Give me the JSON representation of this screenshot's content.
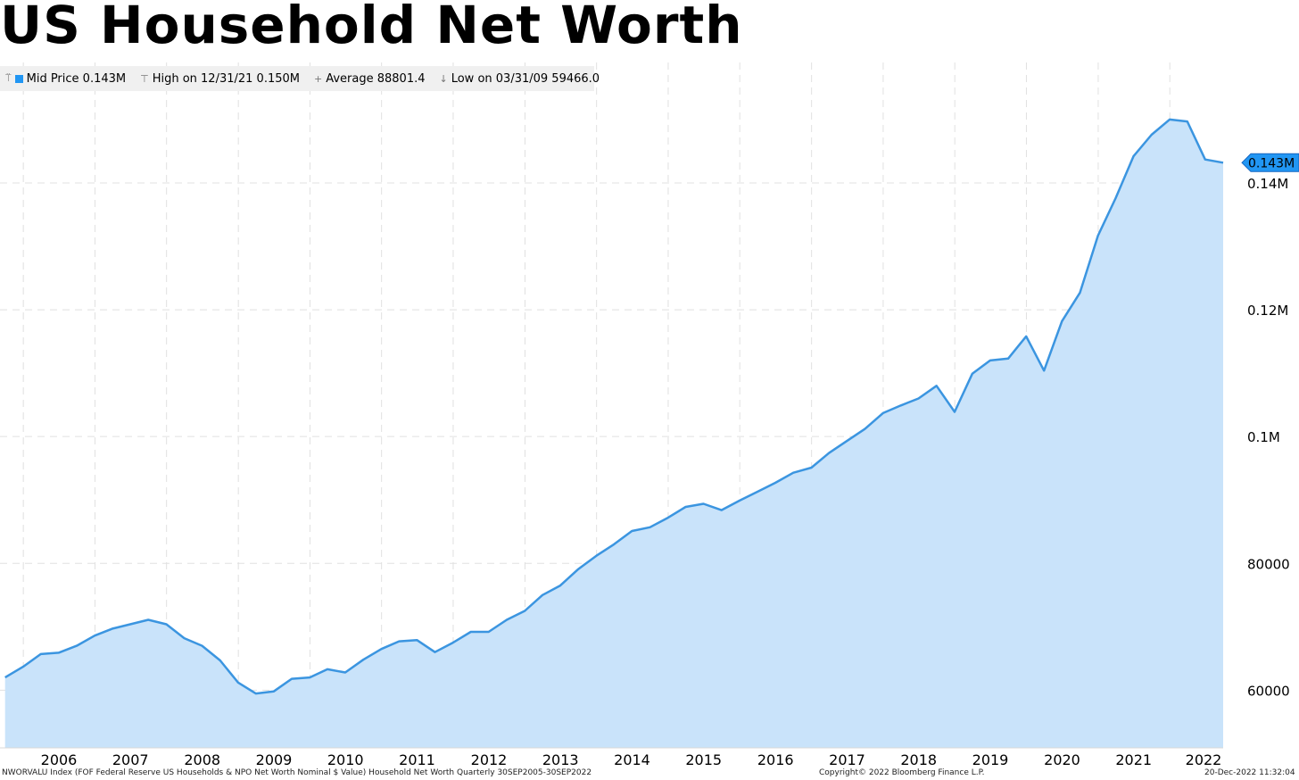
{
  "title": "US Household Net Worth",
  "legend": {
    "mid_price": "Mid Price 0.143M",
    "high": "High on 12/31/21 0.150M",
    "average": "Average 88801.4",
    "low": "Low on 03/31/09 59466.0"
  },
  "colors": {
    "line": "#3b95e0",
    "fill": "#c9e3fa",
    "marker": "#2196f3",
    "grid": "#e0e0e0"
  },
  "footer": {
    "source": "NWORVALU Index (FOF Federal Reserve US Households & NPO Net Worth Nominal $ Value) Household Net Worth  Quarterly 30SEP2005-30SEP2022",
    "copyright": "Copyright© 2022 Bloomberg Finance L.P.",
    "timestamp": "20-Dec-2022 11:32:04"
  },
  "chart_data": {
    "type": "area",
    "title": "US Household Net Worth",
    "series": [
      {
        "name": "Mid Price",
        "x": [
          "09/30/05",
          "12/31/05",
          "03/31/06",
          "06/30/06",
          "09/30/06",
          "12/31/06",
          "03/31/07",
          "06/30/07",
          "09/30/07",
          "12/31/07",
          "03/31/08",
          "06/30/08",
          "09/30/08",
          "12/31/08",
          "03/31/09",
          "06/30/09",
          "09/30/09",
          "12/31/09",
          "03/31/10",
          "06/30/10",
          "09/30/10",
          "12/31/10",
          "03/31/11",
          "06/30/11",
          "09/30/11",
          "12/31/11",
          "03/31/12",
          "06/30/12",
          "09/30/12",
          "12/31/12",
          "03/31/13",
          "06/30/13",
          "09/30/13",
          "12/31/13",
          "03/31/14",
          "06/30/14",
          "09/30/14",
          "12/31/14",
          "03/31/15",
          "06/30/15",
          "09/30/15",
          "12/31/15",
          "03/31/16",
          "06/30/16",
          "09/30/16",
          "12/31/16",
          "03/31/17",
          "06/30/17",
          "09/30/17",
          "12/31/17",
          "03/31/18",
          "06/30/18",
          "09/30/18",
          "12/31/18",
          "03/31/19",
          "06/30/19",
          "09/30/19",
          "12/31/19",
          "03/31/20",
          "06/30/20",
          "09/30/20",
          "12/31/20",
          "03/31/21",
          "06/30/21",
          "09/30/21",
          "12/31/21",
          "03/31/22",
          "06/30/22",
          "09/30/22"
        ],
        "values": [
          62000,
          63700,
          65700,
          65900,
          67000,
          68600,
          69700,
          70400,
          71100,
          70400,
          68200,
          67000,
          64700,
          61200,
          59466,
          59800,
          61800,
          62000,
          63300,
          62800,
          64800,
          66500,
          67700,
          67900,
          66000,
          67500,
          69200,
          69200,
          71100,
          72500,
          75000,
          76500,
          79100,
          81200,
          83000,
          85100,
          85700,
          87200,
          88900,
          89400,
          88400,
          89900,
          91300,
          92700,
          94300,
          95100,
          97400,
          99300,
          101200,
          103700,
          104900,
          106000,
          108000,
          103900,
          109900,
          112000,
          112300,
          115800,
          110400,
          118200,
          122700,
          131700,
          137600,
          144200,
          147600,
          150000,
          149700,
          143700,
          143200
        ]
      }
    ],
    "xlabel": "",
    "ylabel": "",
    "xtick_labels": [
      "2006",
      "2007",
      "2008",
      "2009",
      "2010",
      "2011",
      "2012",
      "2013",
      "2014",
      "2015",
      "2016",
      "2017",
      "2018",
      "2019",
      "2020",
      "2021",
      "2022"
    ],
    "ytick_labels": [
      "60000",
      "80000",
      "0.1M",
      "0.12M",
      "0.14M"
    ],
    "ytick_values": [
      60000,
      80000,
      100000,
      120000,
      140000
    ],
    "last_value_label": "0.143M",
    "ylim": [
      50900,
      159000
    ],
    "xlim": [
      "09/30/05",
      "09/30/22"
    ],
    "grid": true,
    "legend_position": "top-left"
  }
}
